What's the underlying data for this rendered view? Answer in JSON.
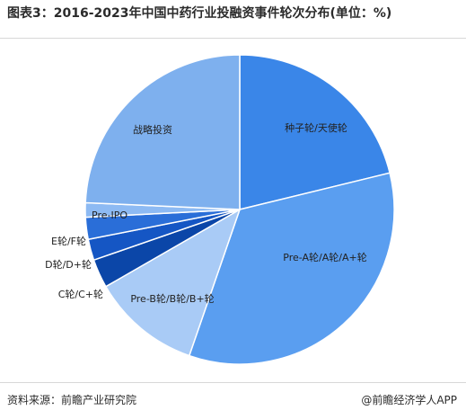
{
  "title": "图表3：2016-2023年中国中药行业投融资事件轮次分布(单位：%)",
  "source": "资料来源：前瞻产业研究院",
  "brand": "@前瞻经济学人APP",
  "chart_data": {
    "type": "pie",
    "title": "图表3：2016-2023年中国中药行业投融资事件轮次分布(单位：%)",
    "unit": "%",
    "start_angle_deg": 0,
    "direction": "clockwise",
    "slices": [
      {
        "label": "种子轮/天使轮",
        "value": 21.2,
        "color": "#3a86e8",
        "label_color": "#1a1a1a"
      },
      {
        "label": "Pre-A轮/A轮/A+轮",
        "value": 34.1,
        "color": "#5a9ef0",
        "label_color": "#1a1a1a"
      },
      {
        "label": "Pre-B轮/B轮/B+轮",
        "value": 11.4,
        "color": "#a9cbf6",
        "label_color": "#1a1a1a"
      },
      {
        "label": "C轮/C+轮",
        "value": 3.0,
        "color": "#0b46a8",
        "label_color": "#1a1a1a"
      },
      {
        "label": "D轮/D+轮",
        "value": 2.2,
        "color": "#1556c4",
        "label_color": "#1a1a1a"
      },
      {
        "label": "E轮/F轮",
        "value": 2.3,
        "color": "#2a6ed8",
        "label_color": "#1a1a1a"
      },
      {
        "label": "Pre-IPO",
        "value": 1.5,
        "color": "#8dbaf3",
        "label_color": "#1a1a1a"
      },
      {
        "label": "战略投资",
        "value": 24.3,
        "color": "#7eb0ee",
        "label_color": "#1a1a1a"
      }
    ]
  }
}
